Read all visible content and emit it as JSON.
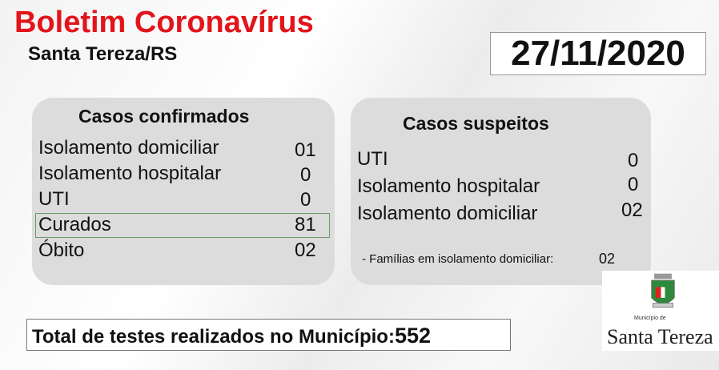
{
  "header": {
    "title": "Boletim Coronavírus",
    "subtitle": "Santa Tereza/RS",
    "date": "27/11/2020"
  },
  "confirmados": {
    "title": "Casos confirmados",
    "rows": [
      {
        "label": "Isolamento domiciliar",
        "value": "01"
      },
      {
        "label": "Isolamento hospitalar",
        "value": "0"
      },
      {
        "label": "UTI",
        "value": "0"
      },
      {
        "label": "Curados",
        "value": "81"
      },
      {
        "label": "Óbito",
        "value": "02"
      }
    ]
  },
  "suspeitos": {
    "title": "Casos suspeitos",
    "rows": [
      {
        "label": "UTI",
        "value": "0"
      },
      {
        "label": "Isolamento hospitalar",
        "value": "0"
      },
      {
        "label": "Isolamento domiciliar",
        "value": "02"
      }
    ],
    "familias_label": "- Famílias em isolamento domiciliar:",
    "familias_value": "02"
  },
  "total": {
    "label": "Total de testes realizados no Município:",
    "value": "552"
  },
  "logo": {
    "small": "Município de",
    "name": "Santa Tereza",
    "icon": "municipal-coat-of-arms"
  },
  "colors": {
    "title": "#e3141b",
    "panel": "#dcdcdc"
  }
}
